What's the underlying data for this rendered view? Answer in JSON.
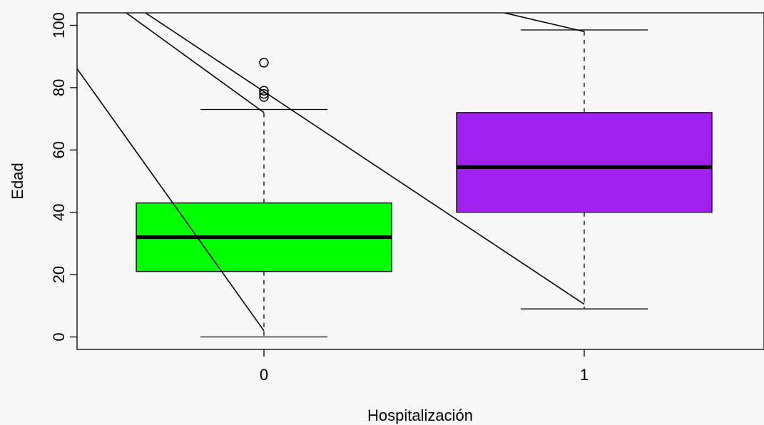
{
  "chart_data": {
    "type": "box",
    "xlabel": "Hospitalización",
    "ylabel": "Edad",
    "categories": [
      "0",
      "1"
    ],
    "ylim": [
      -4,
      104
    ],
    "yticks": [
      0,
      20,
      40,
      60,
      80,
      100
    ],
    "grid": false,
    "boxes": [
      {
        "category": "0",
        "color": "#00ff00",
        "whisker_low": 0,
        "q1": 21,
        "median": 32,
        "q3": 43,
        "whisker_high": 73,
        "outliers": [
          77,
          78,
          79,
          88
        ]
      },
      {
        "category": "1",
        "color": "#a020f0",
        "whisker_low": 9,
        "q1": 40,
        "median": 54.5,
        "q3": 72,
        "whisker_high": 98.5,
        "outliers": []
      }
    ],
    "overlay_lines": [
      {
        "x": [
          -0.59,
          0.0
        ],
        "y": [
          87,
          2
        ]
      },
      {
        "x": [
          -0.43,
          0.0
        ],
        "y": [
          104,
          72
        ]
      },
      {
        "x": [
          -0.37,
          1.0
        ],
        "y": [
          104,
          10.5
        ]
      },
      {
        "x": [
          0.75,
          1.0
        ],
        "y": [
          104,
          98
        ]
      }
    ]
  }
}
